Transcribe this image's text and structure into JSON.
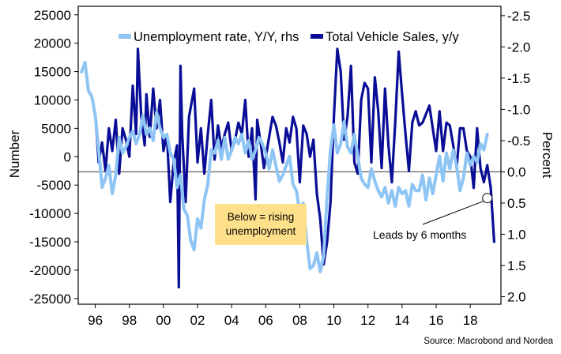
{
  "chart_data": {
    "type": "line",
    "title": "",
    "xlabel": "",
    "ylabel": "Number",
    "y2label": "Percent",
    "source": "Source: Macrobond and Nordea",
    "x_ticks": [
      "96",
      "98",
      "00",
      "02",
      "04",
      "06",
      "08",
      "10",
      "12",
      "14",
      "16",
      "18"
    ],
    "x_tick_years": [
      1996,
      1998,
      2000,
      2002,
      2004,
      2006,
      2008,
      2010,
      2012,
      2014,
      2016,
      2018
    ],
    "xlim": [
      1995.0,
      2019.8
    ],
    "ylim": [
      -26000,
      26500
    ],
    "y_ticks": [
      25000,
      20000,
      15000,
      10000,
      5000,
      0,
      -5000,
      -10000,
      -15000,
      -20000,
      -25000
    ],
    "y_tick_labels": [
      "25000",
      "20000",
      "15000",
      "10000",
      "5000",
      "0",
      "-5000",
      "-10000",
      "-15000",
      "-20000",
      "-25000"
    ],
    "y2lim": [
      2.12,
      -2.65
    ],
    "y2_inverted": true,
    "y2_ticks": [
      -2.5,
      -2.0,
      -1.5,
      -1.0,
      -0.5,
      0.0,
      0.5,
      1.0,
      1.5,
      2.0
    ],
    "y2_tick_labels": [
      "-2.5",
      "-2.0",
      "-1.5",
      "-1.0",
      "-0.5",
      "0.0",
      "0.5",
      "1.0",
      "1.5",
      "2.0"
    ],
    "reference_line": {
      "axis": "y2",
      "value": 0.0
    },
    "legend": {
      "placement": "top",
      "entries": [
        "Unemployment rate, Y/Y, rhs",
        "Total Vehicle Sales, y/y"
      ]
    },
    "series": [
      {
        "name": "Total Vehicle Sales, y/y",
        "axis": "left",
        "color": "#0a0e96",
        "x": [
          1996.0,
          1996.2,
          1996.4,
          1996.6,
          1996.8,
          1997.0,
          1997.2,
          1997.4,
          1997.6,
          1997.8,
          1998.0,
          1998.2,
          1998.4,
          1998.5,
          1998.7,
          1998.9,
          1999.0,
          1999.2,
          1999.4,
          1999.6,
          1999.8,
          2000.0,
          2000.2,
          2000.4,
          2000.6,
          2000.8,
          2000.9,
          2001.0,
          2001.1,
          2001.3,
          2001.5,
          2001.8,
          2002.0,
          2002.2,
          2002.4,
          2002.6,
          2002.8,
          2003.0,
          2003.2,
          2003.4,
          2003.6,
          2003.8,
          2004.0,
          2004.2,
          2004.4,
          2004.6,
          2004.8,
          2005.0,
          2005.2,
          2005.4,
          2005.5,
          2005.7,
          2005.9,
          2006.2,
          2006.4,
          2006.6,
          2006.8,
          2007.0,
          2007.2,
          2007.4,
          2007.6,
          2007.8,
          2008.0,
          2008.2,
          2008.4,
          2008.6,
          2008.8,
          2009.0,
          2009.2,
          2009.4,
          2009.6,
          2009.8,
          2010.0,
          2010.2,
          2010.4,
          2010.6,
          2010.8,
          2011.0,
          2011.2,
          2011.4,
          2011.6,
          2011.8,
          2012.0,
          2012.2,
          2012.4,
          2012.6,
          2012.8,
          2013.0,
          2013.2,
          2013.4,
          2013.6,
          2013.8,
          2014.0,
          2014.2,
          2014.4,
          2014.6,
          2014.8,
          2015.0,
          2015.2,
          2015.4,
          2015.6,
          2015.8,
          2016.0,
          2016.2,
          2016.4,
          2016.6,
          2016.8,
          2017.0,
          2017.2,
          2017.4,
          2017.6,
          2017.8,
          2018.0,
          2018.2,
          2018.4,
          2018.6,
          2018.8,
          2019.0,
          2019.2,
          2019.4
        ],
        "values": [
          7500,
          -1000,
          2500,
          -2500,
          5000,
          1000,
          6500,
          -3000,
          5000,
          3000,
          0,
          12500,
          4000,
          19000,
          7000,
          2000,
          11000,
          3500,
          12000,
          5000,
          10000,
          1000,
          4000,
          -8000,
          -1000,
          2000,
          -23000,
          16000,
          4000,
          -8000,
          7000,
          12000,
          -1000,
          5000,
          -3000,
          4000,
          10000,
          -500,
          5500,
          1500,
          4000,
          6000,
          1000,
          3000,
          6000,
          4000,
          10000,
          0,
          5000,
          -7500,
          6500,
          2500,
          -2000,
          3500,
          7000,
          5500,
          2500,
          -1000,
          5000,
          2500,
          7000,
          5000,
          -4500,
          5500,
          4000,
          0,
          3000,
          -6500,
          -11000,
          -19000,
          -15000,
          -8000,
          7000,
          19000,
          15000,
          3000,
          7000,
          16000,
          -1000,
          -3000,
          10000,
          13000,
          12000,
          -1000,
          14000,
          8000,
          -2000,
          12000,
          2000,
          -4500,
          6000,
          18500,
          11000,
          4000,
          -2500,
          6000,
          8000,
          5500,
          6000,
          7500,
          9000,
          5000,
          1000,
          8000,
          1000,
          6000,
          5500,
          2000,
          -2000,
          5000,
          5000,
          1000,
          0,
          -5500,
          5000,
          -2000,
          -4500,
          -1500,
          -5500,
          -15000
        ]
      },
      {
        "name": "Unemployment rate, Y/Y, rhs",
        "axis": "right",
        "color": "#8ec5f4",
        "x": [
          1995.2,
          1995.4,
          1995.6,
          1995.8,
          1996.0,
          1996.2,
          1996.4,
          1996.6,
          1996.8,
          1997.0,
          1997.2,
          1997.4,
          1997.6,
          1997.8,
          1998.0,
          1998.2,
          1998.4,
          1998.6,
          1998.8,
          1999.0,
          1999.2,
          1999.4,
          1999.6,
          1999.8,
          2000.0,
          2000.2,
          2000.4,
          2000.6,
          2000.8,
          2001.0,
          2001.2,
          2001.4,
          2001.6,
          2001.8,
          2002.0,
          2002.2,
          2002.4,
          2002.6,
          2002.8,
          2003.0,
          2003.2,
          2003.4,
          2003.6,
          2003.8,
          2004.0,
          2004.2,
          2004.4,
          2004.6,
          2004.8,
          2005.0,
          2005.2,
          2005.4,
          2005.6,
          2005.8,
          2006.0,
          2006.2,
          2006.4,
          2006.6,
          2006.8,
          2007.0,
          2007.2,
          2007.4,
          2007.6,
          2007.8,
          2008.0,
          2008.2,
          2008.4,
          2008.6,
          2008.8,
          2009.0,
          2009.2,
          2009.4,
          2009.6,
          2009.8,
          2010.0,
          2010.2,
          2010.4,
          2010.6,
          2010.8,
          2011.0,
          2011.2,
          2011.4,
          2011.6,
          2011.8,
          2012.0,
          2012.2,
          2012.4,
          2012.6,
          2012.8,
          2013.0,
          2013.2,
          2013.4,
          2013.6,
          2013.8,
          2014.0,
          2014.2,
          2014.4,
          2014.6,
          2014.8,
          2015.0,
          2015.2,
          2015.4,
          2015.6,
          2015.8,
          2016.0,
          2016.2,
          2016.4,
          2016.6,
          2016.8,
          2017.0,
          2017.2,
          2017.4,
          2017.6,
          2017.8,
          2018.0,
          2018.2,
          2018.4,
          2018.6,
          2018.8,
          2019.0
        ],
        "values": [
          -1.6,
          -1.75,
          -1.3,
          -1.2,
          -0.9,
          -0.35,
          0.25,
          0.1,
          -0.1,
          0.35,
          0.05,
          -0.55,
          -0.3,
          -0.4,
          -0.55,
          -0.65,
          -0.45,
          -0.6,
          -0.9,
          -0.6,
          -0.7,
          -0.5,
          -0.95,
          -0.7,
          -0.55,
          -0.6,
          -0.3,
          -0.2,
          0.25,
          0.05,
          0.6,
          0.7,
          1.1,
          1.25,
          0.75,
          0.9,
          0.45,
          0.2,
          -0.35,
          -0.3,
          -0.5,
          -0.2,
          -0.55,
          -0.2,
          -0.35,
          -0.55,
          -0.45,
          -0.6,
          -0.3,
          -0.5,
          -0.2,
          -0.35,
          -0.55,
          -0.45,
          -0.3,
          -0.05,
          -0.35,
          -0.1,
          0.15,
          0.05,
          -0.1,
          -0.25,
          0.2,
          0.3,
          0.65,
          0.5,
          1.1,
          1.55,
          1.5,
          1.3,
          1.6,
          1.35,
          0.4,
          -0.35,
          -0.75,
          -0.3,
          -0.45,
          -0.8,
          -0.4,
          -0.3,
          -0.6,
          -0.25,
          0.1,
          0.2,
          0.25,
          -0.05,
          0.15,
          0.3,
          0.4,
          0.25,
          0.5,
          0.3,
          0.55,
          0.25,
          0.35,
          0.3,
          0.55,
          0.2,
          0.3,
          0.3,
          0.05,
          0.45,
          0.1,
          0.35,
          0.05,
          -0.25,
          0.15,
          -0.3,
          -0.05,
          -0.35,
          -0.1,
          0.3,
          0.1,
          -0.3,
          -0.1,
          -0.25,
          -0.15,
          -0.45,
          -0.35,
          -0.6
        ]
      }
    ],
    "annotations": [
      {
        "text_lines": [
          "Below = rising",
          "unemployment"
        ],
        "style": "yellow-box",
        "box_color": "#ffe08a"
      },
      {
        "text": "Leads by 6 months",
        "marker": "circle",
        "marker_x": 2019.0,
        "marker_y": -7300,
        "arrow_from": "text"
      }
    ]
  }
}
